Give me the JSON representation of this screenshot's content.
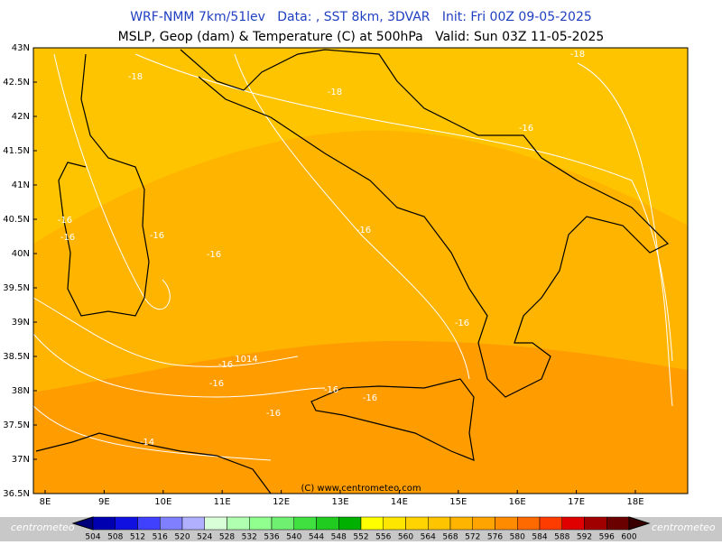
{
  "header": {
    "line1": "WRF-NMM 7km/51lev   Data: , SST 8km, 3DVAR   Init: Fri 00Z 09-05-2025",
    "line2": "MSLP, Geop (dam) & Temperature (C) at 500hPa   Valid: Sun 03Z 11-05-2025"
  },
  "map": {
    "lat_labels": [
      "43N",
      "42.5N",
      "42N",
      "41.5N",
      "41N",
      "40.5N",
      "40N",
      "39.5N",
      "39N",
      "38.5N",
      "38N",
      "37.5N",
      "37N",
      "36.5N"
    ],
    "lon_labels": [
      "8E",
      "9E",
      "10E",
      "11E",
      "12E",
      "13E",
      "14E",
      "15E",
      "16E",
      "17E",
      "18E"
    ],
    "contour_labels": [
      "-18",
      "-18",
      "-16",
      "-16",
      "-16",
      "-16",
      "-16",
      "-16",
      "-16",
      "-16",
      "-16",
      "-16",
      "-16",
      "-16",
      "-14",
      "1014",
      "-18"
    ],
    "copyright": "(C) www.centrometeo.com"
  },
  "colorbar": {
    "levels": [
      504,
      508,
      512,
      516,
      520,
      524,
      528,
      532,
      536,
      540,
      544,
      548,
      552,
      556,
      560,
      564,
      568,
      572,
      576,
      580,
      584,
      588,
      592,
      596,
      600
    ],
    "colors": [
      "#00007a",
      "#0000b0",
      "#1010e0",
      "#4040ff",
      "#8080ff",
      "#b0b0ff",
      "#d8ffd8",
      "#b0ffb0",
      "#90ff90",
      "#70f070",
      "#40e040",
      "#20cc20",
      "#00b000",
      "#ffff00",
      "#ffe600",
      "#ffd400",
      "#ffc400",
      "#ffb400",
      "#ffa400",
      "#ff8c00",
      "#ff6a00",
      "#ff3c00",
      "#e00000",
      "#a00000",
      "#6a0000",
      "#3a0000"
    ]
  },
  "logos": {
    "left": "centrometeo",
    "right": "centrometeo"
  }
}
